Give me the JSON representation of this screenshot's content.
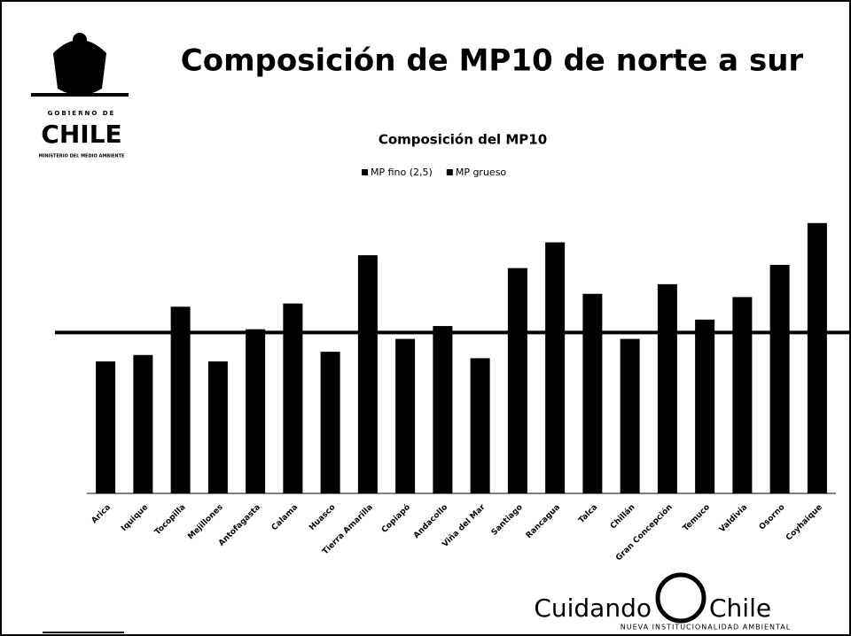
{
  "slide": {
    "title": "Composición de MP10 de norte a sur",
    "logo_top": "GOBIERNO DE",
    "logo_country": "CHILE",
    "logo_ministry": "MINISTERIO DEL MEDIO AMBIENTE",
    "brand_left": "Cuidando",
    "brand_right": "Chile",
    "brand_tagline": "NUEVA INSTITUCIONALIDAD AMBIENTAL"
  },
  "chart_data": {
    "type": "bar",
    "title": "Composición del MP10",
    "legend": [
      "MP fino (2,5)",
      "MP grueso"
    ],
    "categories": [
      "Arica",
      "Iquique",
      "Tocopilla",
      "Mejillones",
      "Antofagasta",
      "Calama",
      "Huasco",
      "Tierra Amarilla",
      "Copiapó",
      "Andacollo",
      "Viña del Mar",
      "Santiago",
      "Rancagua",
      "Talca",
      "Chillán",
      "Gran Concepción",
      "Temuco",
      "Valdivia",
      "Osorno",
      "Coyhaique"
    ],
    "values": [
      41,
      43,
      58,
      41,
      51,
      59,
      44,
      74,
      48,
      52,
      42,
      70,
      78,
      62,
      48,
      65,
      54,
      61,
      71,
      84
    ],
    "reference_line": 50,
    "color": "#000000",
    "ylim": [
      0,
      90
    ]
  }
}
